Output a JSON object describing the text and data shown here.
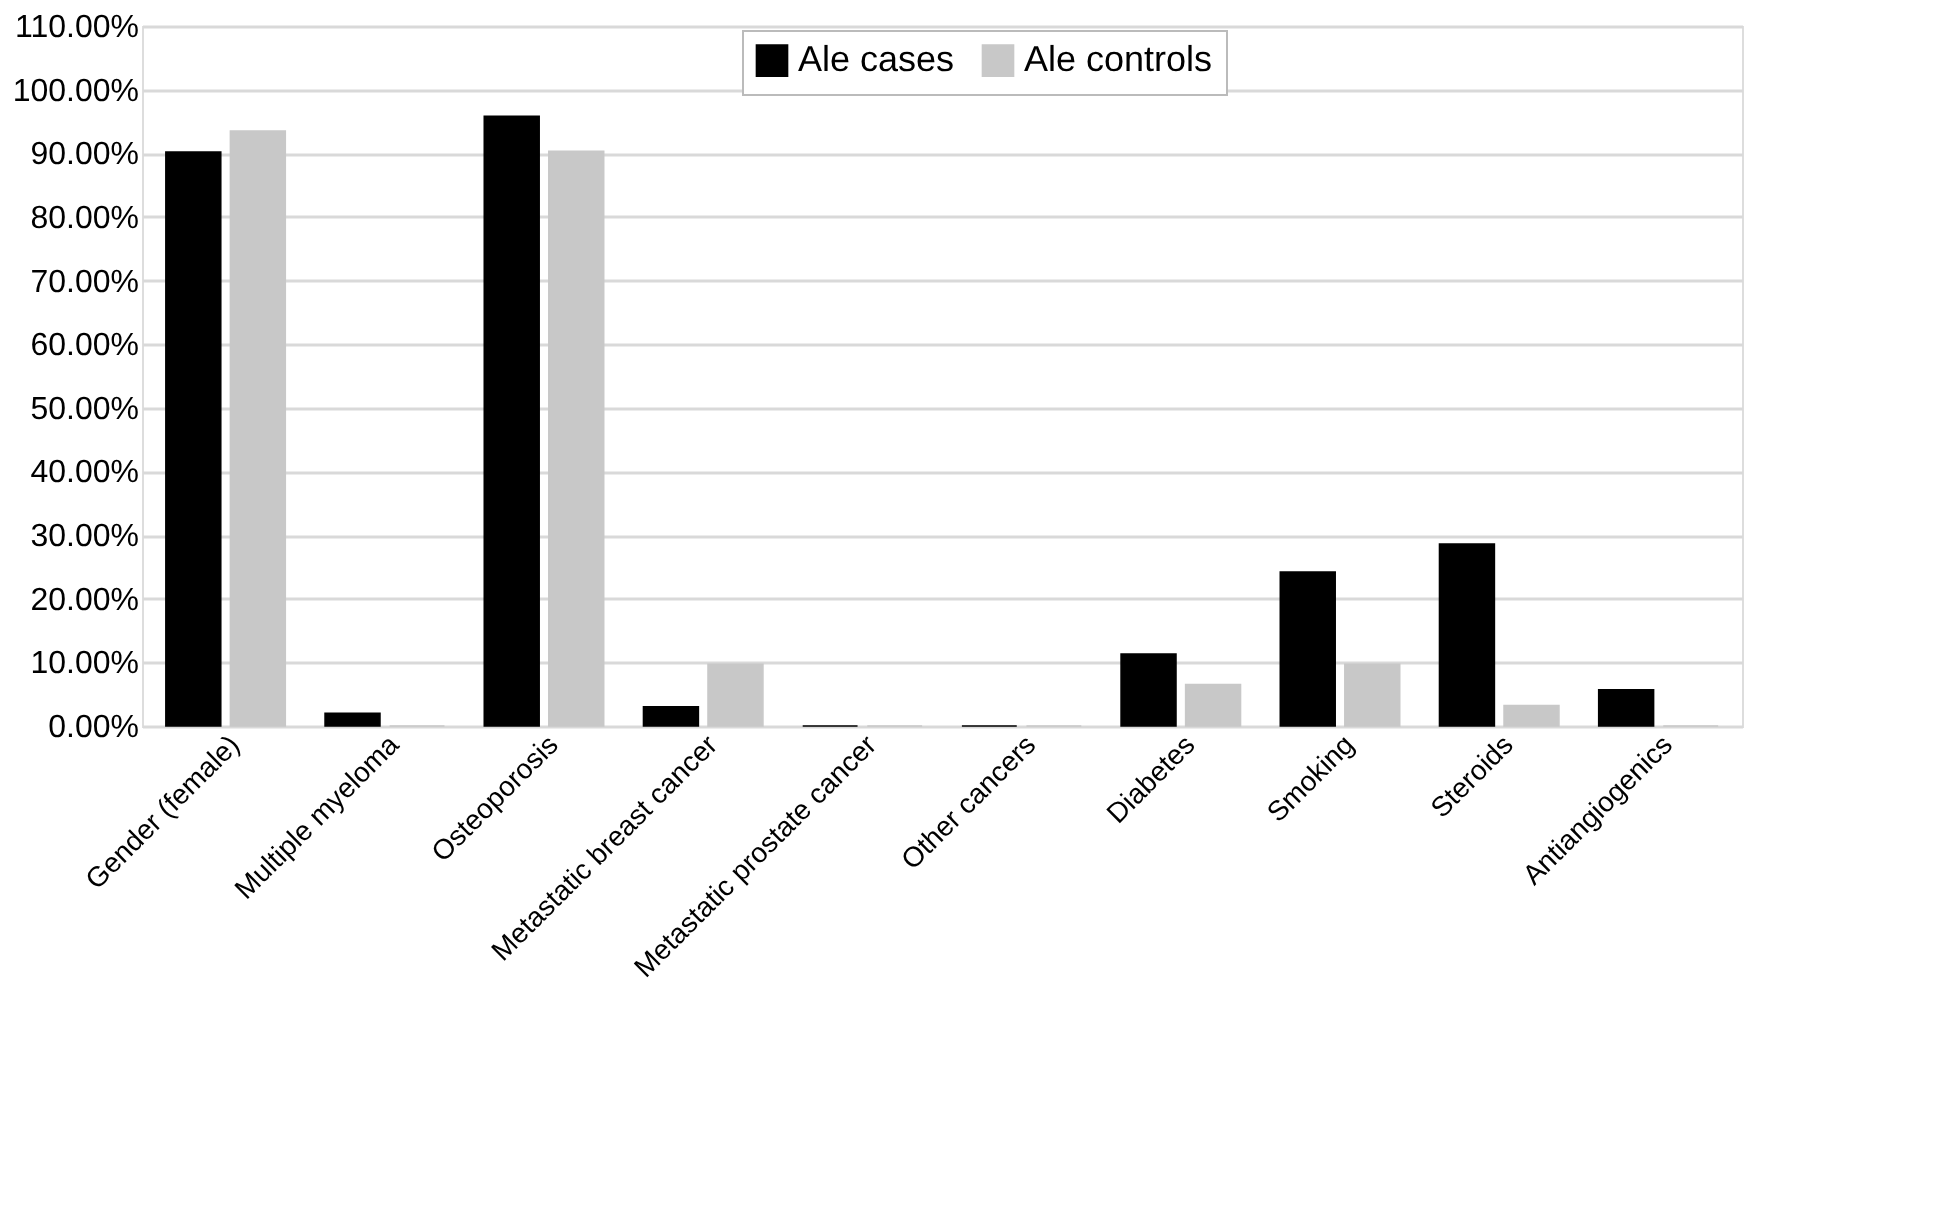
{
  "chart_data": {
    "type": "bar",
    "categories": [
      "Gender (female)",
      "Multiple myeloma",
      "Osteoporosis",
      "Metastatic breast cancer",
      "Metastatic prostate cancer",
      "Other cancers",
      "Diabetes",
      "Smoking",
      "Steroids",
      "Antiangiogenics"
    ],
    "series": [
      {
        "name": "Ale cases",
        "color": "#000000",
        "values": [
          90.2,
          2.0,
          95.8,
          3.0,
          0,
          0,
          11.3,
          24.2,
          28.6,
          5.7
        ]
      },
      {
        "name": "Ale controls",
        "color": "#c8c8c8",
        "values": [
          93.5,
          0,
          90.3,
          9.7,
          0,
          0,
          6.5,
          9.7,
          3.2,
          0
        ]
      }
    ],
    "ylim": [
      0,
      110
    ],
    "yticks": [
      {
        "value": 0,
        "label": "0.00%"
      },
      {
        "value": 10,
        "label": "10.00%"
      },
      {
        "value": 20,
        "label": "20.00%"
      },
      {
        "value": 30,
        "label": "30.00%"
      },
      {
        "value": 40,
        "label": "40.00%"
      },
      {
        "value": 50,
        "label": "50.00%"
      },
      {
        "value": 60,
        "label": "60.00%"
      },
      {
        "value": 70,
        "label": "70.00%"
      },
      {
        "value": 80,
        "label": "80.00%"
      },
      {
        "value": 90,
        "label": "90.00%"
      },
      {
        "value": 100,
        "label": "100.00%"
      },
      {
        "value": 110,
        "label": "110.00%"
      }
    ],
    "grid": "y",
    "legend": "top"
  }
}
